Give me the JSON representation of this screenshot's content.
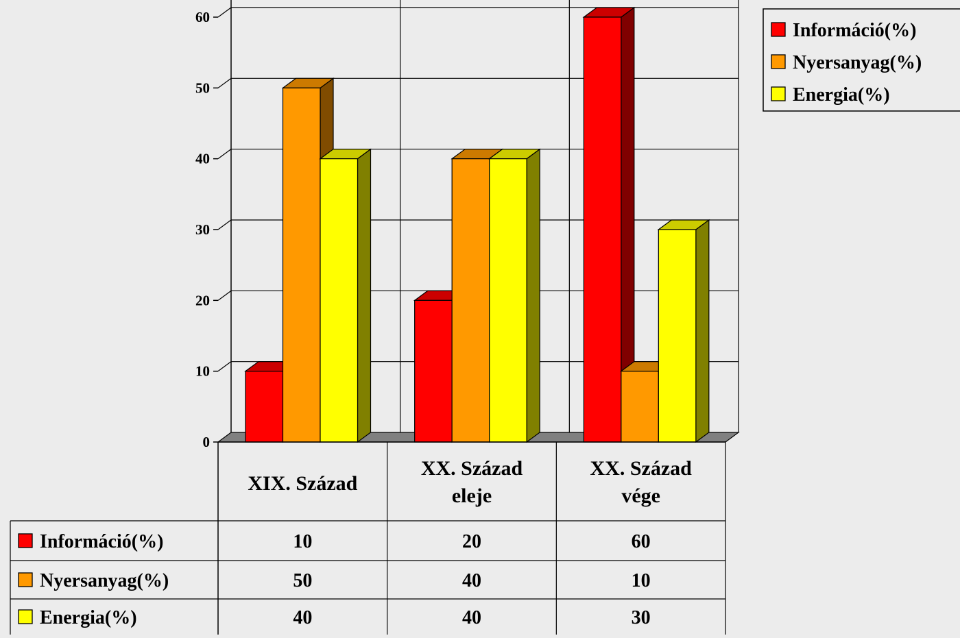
{
  "chart_data": {
    "type": "bar",
    "categories": [
      "XIX. Század",
      "XX. Század eleje",
      "XX. Század vége"
    ],
    "category_lines": [
      [
        "XIX. Század"
      ],
      [
        "XX. Század",
        "eleje"
      ],
      [
        "XX. Század",
        "vége"
      ]
    ],
    "series": [
      {
        "name": "Információ(%)",
        "values": [
          10,
          20,
          60
        ],
        "color": "#ff0000",
        "side": "#800000"
      },
      {
        "name": "Nyersanyag(%)",
        "values": [
          50,
          40,
          10
        ],
        "color": "#ff9900",
        "side": "#804c00"
      },
      {
        "name": "Energia(%)",
        "values": [
          40,
          40,
          30
        ],
        "color": "#ffff00",
        "side": "#808000"
      }
    ],
    "yticks": [
      0,
      10,
      20,
      30,
      40,
      50,
      60
    ],
    "ylim": [
      0,
      60
    ],
    "grid": true,
    "legend": "top-right",
    "data_table": true,
    "style": "3d-clustered-column",
    "floor_color": "#808080"
  }
}
